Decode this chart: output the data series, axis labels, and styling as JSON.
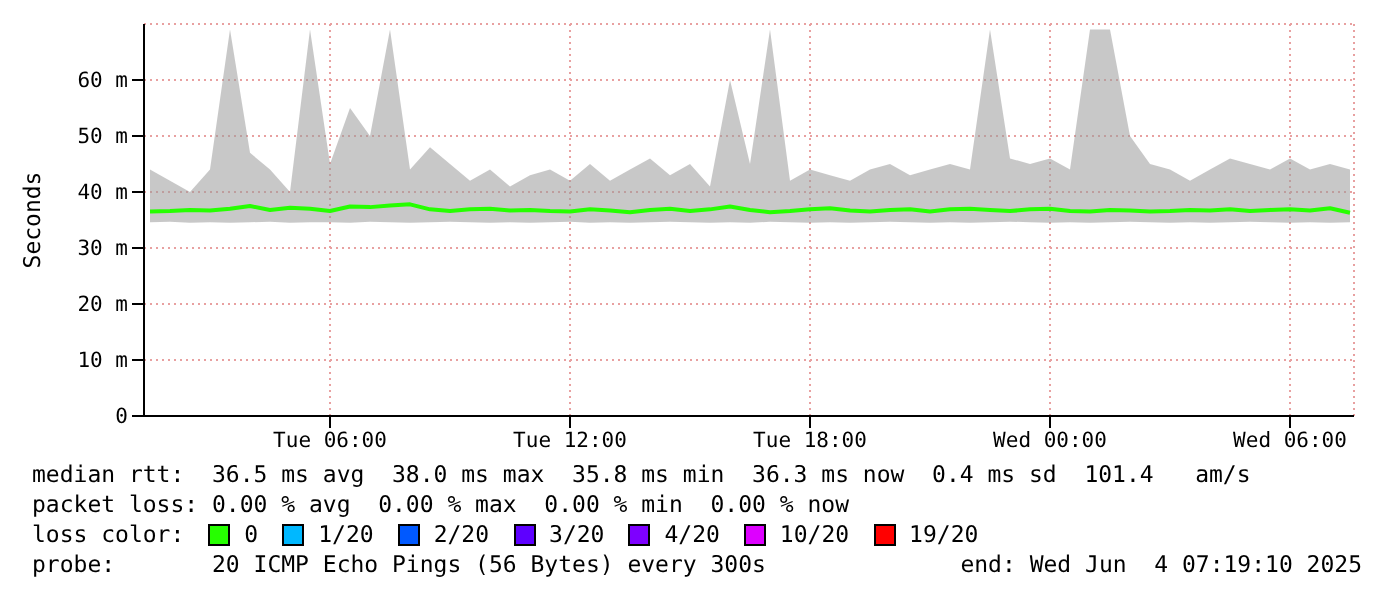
{
  "chart_data": {
    "type": "line",
    "ylabel": "Seconds",
    "x": [
      "2025-06-03T01:30",
      "2025-06-03T02:00",
      "2025-06-03T02:30",
      "2025-06-03T03:00",
      "2025-06-03T03:30",
      "2025-06-03T04:00",
      "2025-06-03T04:30",
      "2025-06-03T05:00",
      "2025-06-03T05:30",
      "2025-06-03T06:00",
      "2025-06-03T06:30",
      "2025-06-03T07:00",
      "2025-06-03T07:30",
      "2025-06-03T08:00",
      "2025-06-03T08:30",
      "2025-06-03T09:00",
      "2025-06-03T09:30",
      "2025-06-03T10:00",
      "2025-06-03T10:30",
      "2025-06-03T11:00",
      "2025-06-03T11:30",
      "2025-06-03T12:00",
      "2025-06-03T12:30",
      "2025-06-03T13:00",
      "2025-06-03T13:30",
      "2025-06-03T14:00",
      "2025-06-03T14:30",
      "2025-06-03T15:00",
      "2025-06-03T15:30",
      "2025-06-03T16:00",
      "2025-06-03T16:30",
      "2025-06-03T17:00",
      "2025-06-03T17:30",
      "2025-06-03T18:00",
      "2025-06-03T18:30",
      "2025-06-03T19:00",
      "2025-06-03T19:30",
      "2025-06-03T20:00",
      "2025-06-03T20:30",
      "2025-06-03T21:00",
      "2025-06-03T21:30",
      "2025-06-03T22:00",
      "2025-06-03T22:30",
      "2025-06-03T23:00",
      "2025-06-03T23:30",
      "2025-06-04T00:00",
      "2025-06-04T00:30",
      "2025-06-04T01:00",
      "2025-06-04T01:30",
      "2025-06-04T02:00",
      "2025-06-04T02:30",
      "2025-06-04T03:00",
      "2025-06-04T03:30",
      "2025-06-04T04:00",
      "2025-06-04T04:30",
      "2025-06-04T05:00",
      "2025-06-04T05:30",
      "2025-06-04T06:00",
      "2025-06-04T06:30",
      "2025-06-04T07:00",
      "2025-06-04T07:30"
    ],
    "xlim": [
      "2025-06-03T01:21",
      "2025-06-04T07:36"
    ],
    "xticks": [
      {
        "value": "2025-06-03T06:00",
        "label": "Tue 06:00"
      },
      {
        "value": "2025-06-03T12:00",
        "label": "Tue 12:00"
      },
      {
        "value": "2025-06-03T18:00",
        "label": "Tue 18:00"
      },
      {
        "value": "2025-06-04T00:00",
        "label": "Wed 00:00"
      },
      {
        "value": "2025-06-04T06:00",
        "label": "Wed 06:00"
      }
    ],
    "ylim": [
      0,
      70
    ],
    "yticks": [
      {
        "value": 0,
        "label": "0"
      },
      {
        "value": 10,
        "label": "10 m"
      },
      {
        "value": 20,
        "label": "20 m"
      },
      {
        "value": 30,
        "label": "30 m"
      },
      {
        "value": 40,
        "label": "40 m"
      },
      {
        "value": 50,
        "label": "50 m"
      },
      {
        "value": 60,
        "label": "60 m"
      }
    ],
    "grid": true,
    "legend": "bottom",
    "legend_title": "loss color:",
    "series": [
      {
        "name": "0",
        "color": "#26ff00",
        "values": [
          36.5,
          36.6,
          36.8,
          36.7,
          37,
          37.5,
          36.8,
          37.2,
          37,
          36.6,
          37.4,
          37.3,
          37.6,
          37.8,
          36.9,
          36.6,
          36.9,
          37,
          36.7,
          36.8,
          36.6,
          36.5,
          36.9,
          36.7,
          36.4,
          36.8,
          37,
          36.6,
          36.9,
          37.4,
          36.8,
          36.4,
          36.6,
          36.9,
          37.1,
          36.7,
          36.5,
          36.8,
          36.9,
          36.5,
          36.9,
          37,
          36.8,
          36.6,
          36.9,
          37,
          36.6,
          36.5,
          36.8,
          36.7,
          36.5,
          36.6,
          36.8,
          36.7,
          36.9,
          36.6,
          36.8,
          36.9,
          36.7,
          37.1,
          36.3
        ],
        "lower": [
          34.6,
          34.7,
          34.5,
          34.6,
          34.5,
          34.6,
          34.7,
          34.5,
          34.6,
          34.6,
          34.5,
          34.7,
          34.6,
          34.5,
          34.6,
          34.7,
          34.6,
          34.5,
          34.6,
          34.5,
          34.6,
          34.7,
          34.5,
          34.6,
          34.5,
          34.6,
          34.7,
          34.6,
          34.5,
          34.6,
          34.5,
          34.7,
          34.6,
          34.5,
          34.6,
          34.5,
          34.6,
          34.7,
          34.6,
          34.5,
          34.6,
          34.5,
          34.6,
          34.7,
          34.6,
          34.5,
          34.6,
          34.5,
          34.6,
          34.7,
          34.6,
          34.5,
          34.6,
          34.5,
          34.6,
          34.7,
          34.6,
          34.5,
          34.6,
          34.5,
          34.6
        ],
        "upper": [
          44,
          42,
          40,
          44,
          69,
          47,
          44,
          40,
          69,
          45,
          55,
          50,
          69,
          44,
          48,
          45,
          42,
          44,
          41,
          43,
          44,
          42,
          45,
          42,
          44,
          46,
          43,
          45,
          41,
          60,
          45,
          69,
          42,
          44,
          43,
          42,
          44,
          45,
          43,
          44,
          45,
          44,
          69,
          46,
          45,
          46,
          44,
          69,
          69,
          50,
          45,
          44,
          42,
          44,
          46,
          45,
          44,
          46,
          44,
          45,
          44
        ]
      },
      {
        "name": "1/20",
        "color": "#00b8ff",
        "values": [
          null,
          null,
          null,
          null,
          null,
          null,
          null,
          null,
          null,
          null,
          null,
          null,
          null,
          null,
          null,
          null,
          null,
          null,
          null,
          null,
          null,
          null,
          null,
          null,
          null,
          null,
          null,
          null,
          null,
          null,
          null,
          null,
          null,
          null,
          null,
          null,
          null,
          null,
          null,
          null,
          null,
          null,
          null,
          null,
          null,
          null,
          null,
          null,
          null,
          null,
          null,
          null,
          null,
          null,
          null,
          null,
          null,
          null,
          null,
          null,
          null
        ]
      },
      {
        "name": "2/20",
        "color": "#0059ff",
        "values": [
          null,
          null,
          null,
          null,
          null,
          null,
          null,
          null,
          null,
          null,
          null,
          null,
          null,
          null,
          null,
          null,
          null,
          null,
          null,
          null,
          null,
          null,
          null,
          null,
          null,
          null,
          null,
          null,
          null,
          null,
          null,
          null,
          null,
          null,
          null,
          null,
          null,
          null,
          null,
          null,
          null,
          null,
          null,
          null,
          null,
          null,
          null,
          null,
          null,
          null,
          null,
          null,
          null,
          null,
          null,
          null,
          null,
          null,
          null,
          null,
          null
        ]
      },
      {
        "name": "3/20",
        "color": "#5e00ff",
        "values": [
          null,
          null,
          null,
          null,
          null,
          null,
          null,
          null,
          null,
          null,
          null,
          null,
          null,
          null,
          null,
          null,
          null,
          null,
          null,
          null,
          null,
          null,
          null,
          null,
          null,
          null,
          null,
          null,
          null,
          null,
          null,
          null,
          null,
          null,
          null,
          null,
          null,
          null,
          null,
          null,
          null,
          null,
          null,
          null,
          null,
          null,
          null,
          null,
          null,
          null,
          null,
          null,
          null,
          null,
          null,
          null,
          null,
          null,
          null,
          null,
          null
        ]
      },
      {
        "name": "4/20",
        "color": "#7e00ff",
        "values": [
          null,
          null,
          null,
          null,
          null,
          null,
          null,
          null,
          null,
          null,
          null,
          null,
          null,
          null,
          null,
          null,
          null,
          null,
          null,
          null,
          null,
          null,
          null,
          null,
          null,
          null,
          null,
          null,
          null,
          null,
          null,
          null,
          null,
          null,
          null,
          null,
          null,
          null,
          null,
          null,
          null,
          null,
          null,
          null,
          null,
          null,
          null,
          null,
          null,
          null,
          null,
          null,
          null,
          null,
          null,
          null,
          null,
          null,
          null,
          null,
          null
        ]
      },
      {
        "name": "10/20",
        "color": "#dd00ff",
        "values": [
          null,
          null,
          null,
          null,
          null,
          null,
          null,
          null,
          null,
          null,
          null,
          null,
          null,
          null,
          null,
          null,
          null,
          null,
          null,
          null,
          null,
          null,
          null,
          null,
          null,
          null,
          null,
          null,
          null,
          null,
          null,
          null,
          null,
          null,
          null,
          null,
          null,
          null,
          null,
          null,
          null,
          null,
          null,
          null,
          null,
          null,
          null,
          null,
          null,
          null,
          null,
          null,
          null,
          null,
          null,
          null,
          null,
          null,
          null,
          null,
          null
        ]
      },
      {
        "name": "19/20",
        "color": "#ff0000",
        "values": [
          null,
          null,
          null,
          null,
          null,
          null,
          null,
          null,
          null,
          null,
          null,
          null,
          null,
          null,
          null,
          null,
          null,
          null,
          null,
          null,
          null,
          null,
          null,
          null,
          null,
          null,
          null,
          null,
          null,
          null,
          null,
          null,
          null,
          null,
          null,
          null,
          null,
          null,
          null,
          null,
          null,
          null,
          null,
          null,
          null,
          null,
          null,
          null,
          null,
          null,
          null,
          null,
          null,
          null,
          null,
          null,
          null,
          null,
          null,
          null,
          null
        ]
      }
    ],
    "annotations": [
      "median rtt:  36.5 ms avg  38.0 ms max  35.8 ms min  36.3 ms now  0.4 ms sd  101.4   am/s",
      "packet loss: 0.00 % avg  0.00 % max  0.00 % min  0.00 % now",
      "probe:       20 ICMP Echo Pings (56 Bytes) every 300s",
      "end: Wed Jun  4 07:19:10 2025"
    ]
  }
}
